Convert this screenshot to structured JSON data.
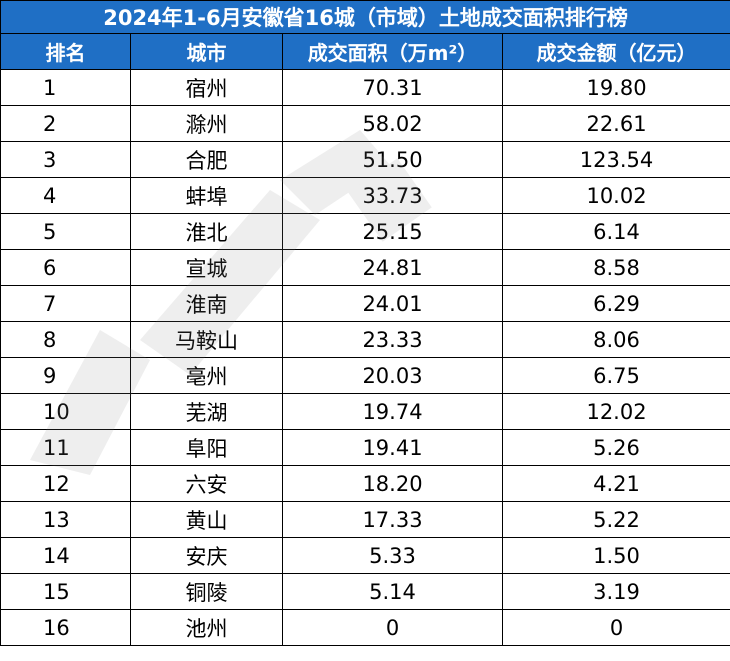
{
  "table": {
    "title": "2024年1-6月安徽省16城（市域）土地成交面积排行榜",
    "headers": [
      "排名",
      "城市",
      "成交面积（万m²）",
      "成交金额（亿元）"
    ],
    "rows": [
      [
        "1",
        "宿州",
        "70.31",
        "19.80"
      ],
      [
        "2",
        "滁州",
        "58.02",
        "22.61"
      ],
      [
        "3",
        "合肥",
        "51.50",
        "123.54"
      ],
      [
        "4",
        "蚌埠",
        "33.73",
        "10.02"
      ],
      [
        "5",
        "淮北",
        "25.15",
        "6.14"
      ],
      [
        "6",
        "宣城",
        "24.81",
        "8.58"
      ],
      [
        "7",
        "淮南",
        "24.01",
        "6.29"
      ],
      [
        "8",
        "马鞍山",
        "23.33",
        "8.06"
      ],
      [
        "9",
        "亳州",
        "20.03",
        "6.75"
      ],
      [
        "10",
        "芜湖",
        "19.74",
        "12.02"
      ],
      [
        "11",
        "阜阳",
        "19.41",
        "5.26"
      ],
      [
        "12",
        "六安",
        "18.20",
        "4.21"
      ],
      [
        "13",
        "黄山",
        "17.33",
        "5.22"
      ],
      [
        "14",
        "安庆",
        "5.33",
        "1.50"
      ],
      [
        "15",
        "铜陵",
        "5.14",
        "3.19"
      ],
      [
        "16",
        "池州",
        "0",
        "0"
      ]
    ]
  },
  "colors": {
    "header_bg": "#1f6fc5",
    "header_text": "#ffffff",
    "border": "#000000",
    "watermark": "#8a8a8a"
  }
}
